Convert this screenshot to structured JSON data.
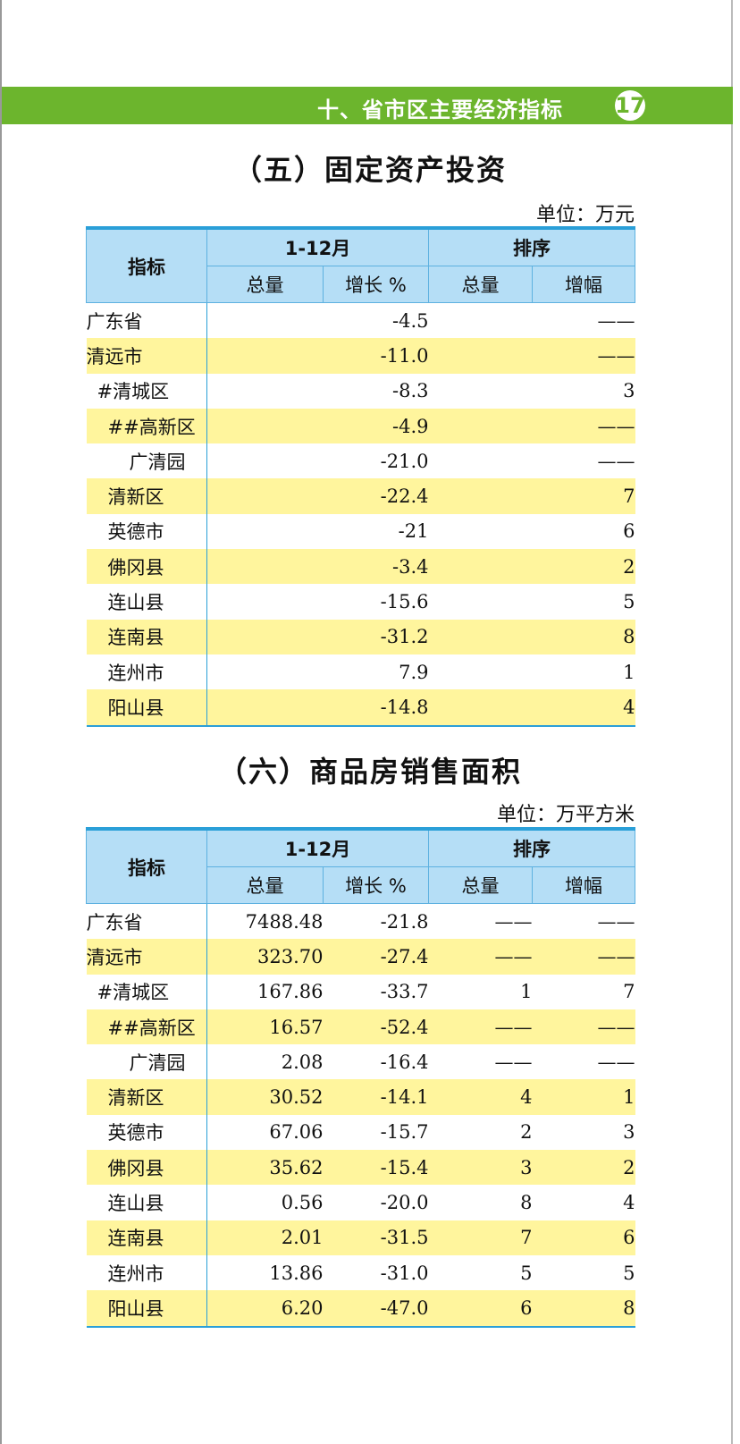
{
  "header": {
    "chapter": "十、省市区主要经济指标",
    "page": "17"
  },
  "columns": {
    "indicator": "指标",
    "period": "1-12月",
    "rank": "排序",
    "total": "总量",
    "growth": "增长 %",
    "rank_total": "总量",
    "rank_growth": "增幅"
  },
  "table1": {
    "title": "（五）固定资产投资",
    "unit": "单位：万元",
    "rows": [
      {
        "name": "广东省",
        "growth": "-4.5",
        "rank": "——"
      },
      {
        "name": "清远市",
        "growth": "-11.0",
        "rank": "——"
      },
      {
        "name": "#清城区",
        "growth": "-8.3",
        "rank": "3"
      },
      {
        "name": "##高新区",
        "growth": "-4.9",
        "rank": "——"
      },
      {
        "name": "广清园",
        "growth": "-21.0",
        "rank": "——"
      },
      {
        "name": "清新区",
        "growth": "-22.4",
        "rank": "7"
      },
      {
        "name": "英德市",
        "growth": "-21",
        "rank": "6"
      },
      {
        "name": "佛冈县",
        "growth": "-3.4",
        "rank": "2"
      },
      {
        "name": "连山县",
        "growth": "-15.6",
        "rank": "5"
      },
      {
        "name": "连南县",
        "growth": "-31.2",
        "rank": "8"
      },
      {
        "name": "连州市",
        "growth": "7.9",
        "rank": "1"
      },
      {
        "name": "阳山县",
        "growth": "-14.8",
        "rank": "4"
      }
    ]
  },
  "table2": {
    "title": "（六）商品房销售面积",
    "unit": "单位：万平方米",
    "rows": [
      {
        "name": "广东省",
        "total": "7488.48",
        "growth": "-21.8",
        "rank_total": "——",
        "rank_growth": "——"
      },
      {
        "name": "清远市",
        "total": "323.70",
        "growth": "-27.4",
        "rank_total": "——",
        "rank_growth": "——"
      },
      {
        "name": "#清城区",
        "total": "167.86",
        "growth": "-33.7",
        "rank_total": "1",
        "rank_growth": "7"
      },
      {
        "name": "##高新区",
        "total": "16.57",
        "growth": "-52.4",
        "rank_total": "——",
        "rank_growth": "——"
      },
      {
        "name": "广清园",
        "total": "2.08",
        "growth": "-16.4",
        "rank_total": "——",
        "rank_growth": "——"
      },
      {
        "name": "清新区",
        "total": "30.52",
        "growth": "-14.1",
        "rank_total": "4",
        "rank_growth": "1"
      },
      {
        "name": "英德市",
        "total": "67.06",
        "growth": "-15.7",
        "rank_total": "2",
        "rank_growth": "3"
      },
      {
        "name": "佛冈县",
        "total": "35.62",
        "growth": "-15.4",
        "rank_total": "3",
        "rank_growth": "2"
      },
      {
        "name": "连山县",
        "total": "0.56",
        "growth": "-20.0",
        "rank_total": "8",
        "rank_growth": "4"
      },
      {
        "name": "连南县",
        "total": "2.01",
        "growth": "-31.5",
        "rank_total": "7",
        "rank_growth": "6"
      },
      {
        "name": "连州市",
        "total": "13.86",
        "growth": "-31.0",
        "rank_total": "5",
        "rank_growth": "5"
      },
      {
        "name": "阳山县",
        "total": "6.20",
        "growth": "-47.0",
        "rank_total": "6",
        "rank_growth": "8"
      }
    ]
  }
}
